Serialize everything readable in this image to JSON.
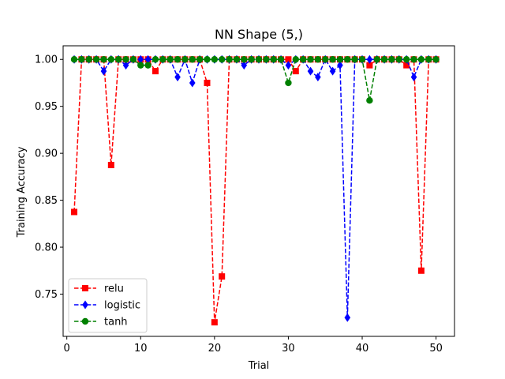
{
  "chart_data": {
    "type": "line",
    "title": "NN Shape (5,)",
    "xlabel": "Trial",
    "ylabel": "Training Accuracy",
    "xlim": [
      -0.5,
      52.5
    ],
    "ylim": [
      0.705,
      1.0145
    ],
    "xticks": [
      0,
      10,
      20,
      30,
      40,
      50
    ],
    "yticks": [
      0.75,
      0.8,
      0.85,
      0.9,
      0.95,
      1.0
    ],
    "ytick_labels": [
      "0.75",
      "0.80",
      "0.85",
      "0.90",
      "0.95",
      "1.00"
    ],
    "grid": false,
    "legend_position": "lower-left",
    "x": [
      1,
      2,
      3,
      4,
      5,
      6,
      7,
      8,
      9,
      10,
      11,
      12,
      13,
      14,
      15,
      16,
      17,
      18,
      19,
      20,
      21,
      22,
      23,
      24,
      25,
      26,
      27,
      28,
      29,
      30,
      31,
      32,
      33,
      34,
      35,
      36,
      37,
      38,
      39,
      40,
      41,
      42,
      43,
      44,
      45,
      46,
      47,
      48,
      49,
      50
    ],
    "series": [
      {
        "name": "relu",
        "color": "#ff0000",
        "marker": "square",
        "values": [
          0.8375,
          1.0,
          1.0,
          1.0,
          1.0,
          0.8875,
          1.0,
          1.0,
          1.0,
          1.0,
          1.0,
          0.9875,
          1.0,
          1.0,
          1.0,
          1.0,
          1.0,
          1.0,
          0.975,
          0.72,
          0.7688,
          1.0,
          1.0,
          1.0,
          1.0,
          1.0,
          1.0,
          1.0,
          1.0,
          1.0,
          0.9875,
          1.0,
          1.0,
          1.0,
          1.0,
          1.0,
          1.0,
          1.0,
          1.0,
          1.0,
          0.9938,
          1.0,
          1.0,
          1.0,
          1.0,
          0.9938,
          1.0,
          0.775,
          1.0,
          1.0
        ]
      },
      {
        "name": "logistic",
        "color": "#0000ff",
        "marker": "diamond",
        "values": [
          1.0,
          1.0,
          1.0,
          1.0,
          0.9875,
          1.0,
          1.0,
          0.9938,
          1.0,
          1.0,
          1.0,
          1.0,
          1.0,
          1.0,
          0.9812,
          1.0,
          0.975,
          1.0,
          1.0,
          1.0,
          1.0,
          1.0,
          1.0,
          0.9938,
          1.0,
          1.0,
          1.0,
          1.0,
          1.0,
          0.9938,
          1.0,
          1.0,
          0.9875,
          0.9812,
          1.0,
          0.9875,
          0.9938,
          0.725,
          1.0,
          1.0,
          1.0,
          1.0,
          1.0,
          1.0,
          1.0,
          1.0,
          0.9812,
          1.0,
          1.0,
          1.0
        ]
      },
      {
        "name": "tanh",
        "color": "#008000",
        "marker": "circle",
        "values": [
          1.0,
          1.0,
          1.0,
          1.0,
          1.0,
          1.0,
          1.0,
          1.0,
          1.0,
          0.9938,
          0.9938,
          1.0,
          1.0,
          1.0,
          1.0,
          1.0,
          1.0,
          1.0,
          1.0,
          1.0,
          1.0,
          1.0,
          1.0,
          1.0,
          1.0,
          1.0,
          1.0,
          1.0,
          1.0,
          0.975,
          1.0,
          1.0,
          1.0,
          1.0,
          1.0,
          1.0,
          1.0,
          1.0,
          1.0,
          1.0,
          0.9563,
          1.0,
          1.0,
          1.0,
          1.0,
          1.0,
          1.0,
          1.0,
          1.0,
          1.0
        ]
      }
    ]
  }
}
